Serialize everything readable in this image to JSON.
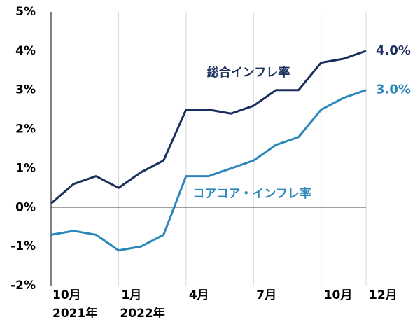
{
  "chart_data": {
    "type": "line",
    "categories": [
      "10月",
      null,
      null,
      "1月",
      null,
      null,
      "4月",
      null,
      null,
      "7月",
      null,
      null,
      "10月",
      null,
      "12月"
    ],
    "category_years": [
      "2021年",
      null,
      null,
      "2022年",
      null,
      null,
      null,
      null,
      null,
      null,
      null,
      null,
      null,
      null,
      null
    ],
    "series": [
      {
        "name": "総合インフレ率",
        "color": "#1b2f5e",
        "values": [
          0.1,
          0.6,
          0.8,
          0.5,
          0.9,
          1.2,
          2.5,
          2.5,
          2.4,
          2.6,
          3.0,
          3.0,
          3.7,
          3.8,
          4.0
        ],
        "end_label": "4.0%"
      },
      {
        "name": "コアコア・インフレ率",
        "color": "#2a86bb",
        "values": [
          -0.7,
          -0.6,
          -0.7,
          -1.1,
          -1.0,
          -0.7,
          0.8,
          0.8,
          1.0,
          1.2,
          1.6,
          1.8,
          2.5,
          2.8,
          3.0
        ],
        "end_label": "3.0%"
      }
    ],
    "ylim": [
      -2,
      5
    ],
    "yticks": [
      {
        "value": -2,
        "label": "-2%"
      },
      {
        "value": -1,
        "label": "-1%"
      },
      {
        "value": 0,
        "label": "0%"
      },
      {
        "value": 1,
        "label": "1%"
      },
      {
        "value": 2,
        "label": "2%"
      },
      {
        "value": 3,
        "label": "3%"
      },
      {
        "value": 4,
        "label": "4%"
      },
      {
        "value": 5,
        "label": "5%"
      }
    ],
    "grid": true
  }
}
